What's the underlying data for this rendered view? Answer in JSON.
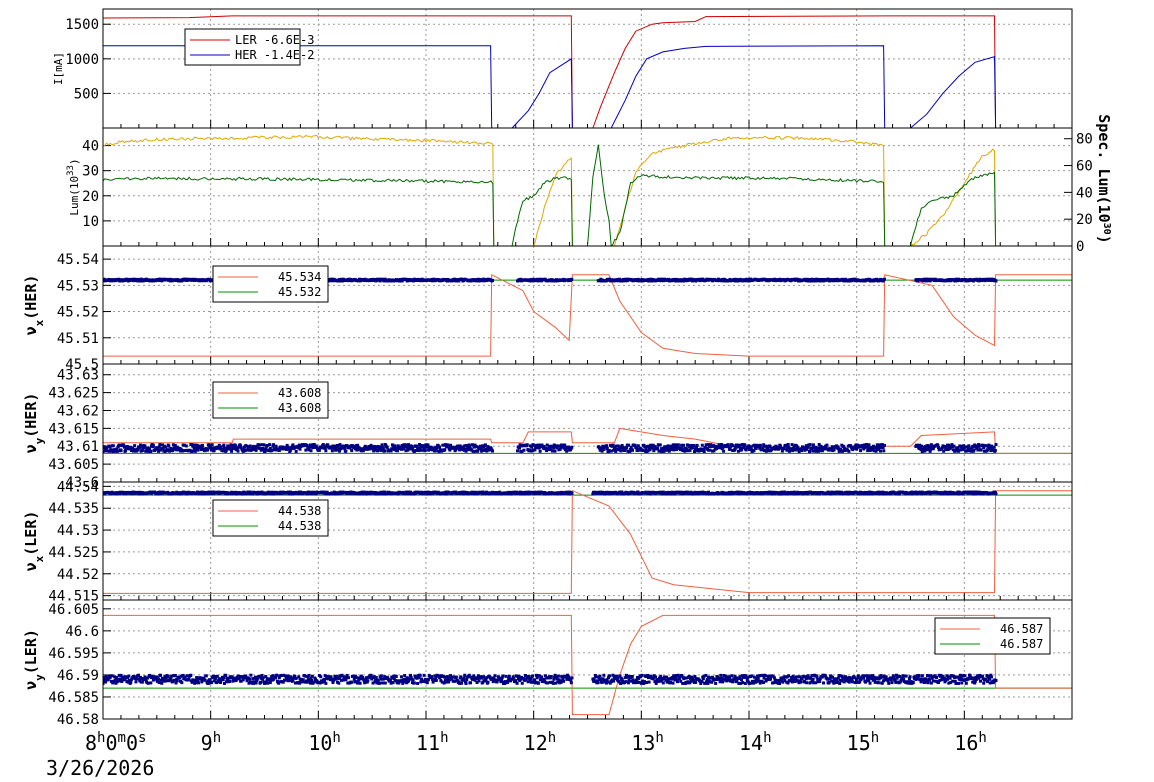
{
  "date_label": "3/26/2026",
  "colors": {
    "ler": "#d00000",
    "her": "#0000c0",
    "lum": "#006600",
    "spec": "#e0a800",
    "tune_set": "#f06040",
    "tune_meas": "#000080",
    "tune_ref": "#009000"
  },
  "chart_data": [
    {
      "type": "line",
      "id": "current",
      "ylabel": "I[mA]",
      "ylim": [
        0,
        1720
      ],
      "yticks": [
        "500",
        "1000",
        "1500"
      ],
      "legend": {
        "placement": "top-left",
        "entries": [
          {
            "label": "LER  -6.6E-3",
            "color": "ler"
          },
          {
            "label": "HER  -1.4E-2",
            "color": "her"
          }
        ]
      },
      "series": [
        {
          "name": "LER",
          "color": "ler",
          "points": [
            [
              8,
              1590
            ],
            [
              8.8,
              1595
            ],
            [
              9.2,
              1620
            ],
            [
              12.35,
              1620
            ],
            [
              12.36,
              0
            ],
            [
              12.55,
              0
            ],
            [
              12.62,
              300
            ],
            [
              12.75,
              800
            ],
            [
              12.85,
              1150
            ],
            [
              12.95,
              1400
            ],
            [
              13.1,
              1500
            ],
            [
              13.2,
              1520
            ],
            [
              13.5,
              1540
            ],
            [
              13.6,
              1610
            ],
            [
              15.3,
              1620
            ],
            [
              16.28,
              1620
            ],
            [
              16.29,
              0
            ],
            [
              17.0,
              0
            ]
          ]
        },
        {
          "name": "HER",
          "color": "her",
          "points": [
            [
              8,
              1190
            ],
            [
              11.6,
              1190
            ],
            [
              11.61,
              0
            ],
            [
              11.8,
              0
            ],
            [
              11.95,
              250
            ],
            [
              12.05,
              500
            ],
            [
              12.15,
              800
            ],
            [
              12.3,
              950
            ],
            [
              12.35,
              1000
            ],
            [
              12.36,
              0
            ],
            [
              12.72,
              0
            ],
            [
              12.85,
              400
            ],
            [
              12.95,
              750
            ],
            [
              13.05,
              1000
            ],
            [
              13.2,
              1100
            ],
            [
              13.4,
              1150
            ],
            [
              13.6,
              1180
            ],
            [
              15.25,
              1190
            ],
            [
              15.26,
              0
            ],
            [
              15.5,
              0
            ],
            [
              15.65,
              200
            ],
            [
              15.8,
              500
            ],
            [
              15.95,
              750
            ],
            [
              16.1,
              950
            ],
            [
              16.28,
              1030
            ],
            [
              16.29,
              0
            ],
            [
              17.0,
              0
            ]
          ]
        }
      ]
    },
    {
      "type": "line",
      "id": "luminosity",
      "ylabel": "Lum(10^33)",
      "ylim": [
        0,
        47
      ],
      "yticks": [
        "10",
        "20",
        "30",
        "40"
      ],
      "right_ylabel": "Spec. Lum(10^30)",
      "right_ylim": [
        0,
        88
      ],
      "right_yticks": [
        "0",
        "20",
        "40",
        "60",
        "80"
      ],
      "series": [
        {
          "name": "Lum",
          "color": "spec",
          "points": [
            [
              8,
              40.5
            ],
            [
              8.2,
              41.5
            ],
            [
              8.5,
              42.5
            ],
            [
              9.0,
              42.8
            ],
            [
              9.5,
              43.2
            ],
            [
              10.0,
              43.5
            ],
            [
              10.5,
              42.5
            ],
            [
              11.0,
              42.0
            ],
            [
              11.5,
              41.0
            ],
            [
              11.62,
              40.5
            ],
            [
              11.63,
              0
            ],
            [
              12.0,
              0
            ],
            [
              12.1,
              15
            ],
            [
              12.2,
              28
            ],
            [
              12.3,
              33
            ],
            [
              12.35,
              35
            ],
            [
              12.36,
              0
            ],
            [
              12.75,
              0
            ],
            [
              12.85,
              15
            ],
            [
              12.95,
              30
            ],
            [
              13.1,
              37
            ],
            [
              13.4,
              40
            ],
            [
              13.8,
              43
            ],
            [
              14.0,
              43.2
            ],
            [
              14.5,
              43
            ],
            [
              15.0,
              41.5
            ],
            [
              15.25,
              40
            ],
            [
              15.26,
              0
            ],
            [
              15.5,
              0
            ],
            [
              15.65,
              5
            ],
            [
              15.8,
              12
            ],
            [
              16.0,
              25
            ],
            [
              16.15,
              35
            ],
            [
              16.28,
              38.5
            ],
            [
              16.29,
              0
            ]
          ]
        },
        {
          "name": "Spec",
          "color": "lum",
          "points": [
            [
              8,
              26.5
            ],
            [
              8.3,
              27
            ],
            [
              9.0,
              26.8
            ],
            [
              10.0,
              26.5
            ],
            [
              11.0,
              25.8
            ],
            [
              11.62,
              25.5
            ],
            [
              11.63,
              0
            ],
            [
              11.8,
              0
            ],
            [
              11.85,
              10
            ],
            [
              11.9,
              18
            ],
            [
              12.0,
              20
            ],
            [
              12.1,
              25
            ],
            [
              12.2,
              27
            ],
            [
              12.35,
              27
            ],
            [
              12.36,
              0
            ],
            [
              12.5,
              0
            ],
            [
              12.55,
              28
            ],
            [
              12.6,
              40
            ],
            [
              12.65,
              22
            ],
            [
              12.7,
              10
            ],
            [
              12.72,
              0
            ],
            [
              12.8,
              5
            ],
            [
              12.85,
              15
            ],
            [
              12.9,
              25
            ],
            [
              13.0,
              28
            ],
            [
              13.5,
              27
            ],
            [
              14.0,
              27
            ],
            [
              14.5,
              26.8
            ],
            [
              15.0,
              26
            ],
            [
              15.25,
              25.5
            ],
            [
              15.26,
              0
            ],
            [
              15.5,
              0
            ],
            [
              15.55,
              8
            ],
            [
              15.6,
              15
            ],
            [
              15.7,
              18
            ],
            [
              15.9,
              20
            ],
            [
              16.05,
              26
            ],
            [
              16.15,
              28
            ],
            [
              16.28,
              29
            ],
            [
              16.29,
              0
            ]
          ]
        }
      ]
    },
    {
      "type": "scatter",
      "id": "nux_her",
      "ylabel": "νx(HER)",
      "ylim": [
        45.5,
        45.545
      ],
      "yticks": [
        "45.5",
        "45.51",
        "45.52",
        "45.53",
        "45.54"
      ],
      "legend": {
        "placement": "top-left",
        "entries": [
          {
            "label": "45.534",
            "color": "tune_set"
          },
          {
            "label": "45.532",
            "color": "tune_ref"
          }
        ]
      },
      "reference": 45.532,
      "set_line": [
        [
          8,
          45.503
        ],
        [
          11.6,
          45.503
        ],
        [
          11.61,
          45.534
        ],
        [
          11.9,
          45.528
        ],
        [
          12.0,
          45.52
        ],
        [
          12.2,
          45.514
        ],
        [
          12.33,
          45.509
        ],
        [
          12.36,
          45.534
        ],
        [
          12.7,
          45.534
        ],
        [
          12.8,
          45.524
        ],
        [
          13.0,
          45.512
        ],
        [
          13.2,
          45.506
        ],
        [
          13.5,
          45.504
        ],
        [
          14.0,
          45.503
        ],
        [
          15.25,
          45.503
        ],
        [
          15.26,
          45.534
        ],
        [
          15.7,
          45.53
        ],
        [
          15.9,
          45.518
        ],
        [
          16.1,
          45.511
        ],
        [
          16.28,
          45.507
        ],
        [
          16.29,
          45.534
        ],
        [
          17,
          45.534
        ]
      ],
      "measured": [
        [
          8,
          11.62,
          45.532
        ],
        [
          11.85,
          12.36,
          45.532
        ],
        [
          12.6,
          15.26,
          45.532
        ],
        [
          15.55,
          16.3,
          45.532
        ]
      ]
    },
    {
      "type": "scatter",
      "id": "nuy_her",
      "ylabel": "νy(HER)",
      "ylim": [
        43.6,
        43.633
      ],
      "yticks": [
        "43.6",
        "43.605",
        "43.61",
        "43.615",
        "43.62",
        "43.625",
        "43.63"
      ],
      "legend": {
        "placement": "top-left",
        "entries": [
          {
            "label": "43.608",
            "color": "tune_set"
          },
          {
            "label": "43.608",
            "color": "tune_ref"
          }
        ]
      },
      "reference": 43.608,
      "set_line": [
        [
          8,
          43.611
        ],
        [
          9.2,
          43.611
        ],
        [
          9.21,
          43.612
        ],
        [
          11.6,
          43.612
        ],
        [
          11.61,
          43.611
        ],
        [
          11.9,
          43.611
        ],
        [
          11.95,
          43.614
        ],
        [
          12.35,
          43.614
        ],
        [
          12.36,
          43.611
        ],
        [
          12.75,
          43.611
        ],
        [
          12.8,
          43.615
        ],
        [
          13.2,
          43.613
        ],
        [
          13.5,
          43.612
        ],
        [
          14.0,
          43.609
        ],
        [
          15.25,
          43.61
        ],
        [
          15.5,
          43.61
        ],
        [
          15.6,
          43.613
        ],
        [
          16.28,
          43.614
        ],
        [
          16.29,
          43.608
        ],
        [
          17,
          43.608
        ]
      ],
      "measured": [
        [
          8,
          11.62,
          43.6095
        ],
        [
          11.85,
          12.36,
          43.6095
        ],
        [
          12.6,
          15.26,
          43.6095
        ],
        [
          15.55,
          16.3,
          43.6095
        ]
      ]
    },
    {
      "type": "scatter",
      "id": "nux_ler",
      "ylabel": "νx(LER)",
      "ylim": [
        44.514,
        44.541
      ],
      "yticks": [
        "44.515",
        "44.52",
        "44.525",
        "44.53",
        "44.535",
        "44.54"
      ],
      "legend": {
        "placement": "top-left",
        "entries": [
          {
            "label": "44.538",
            "color": "tune_set"
          },
          {
            "label": "44.538",
            "color": "tune_ref"
          }
        ]
      },
      "reference": 44.538,
      "set_line": [
        [
          8,
          44.5155
        ],
        [
          12.35,
          44.5155
        ],
        [
          12.36,
          44.539
        ],
        [
          12.7,
          44.5355
        ],
        [
          12.9,
          44.529
        ],
        [
          13.0,
          44.524
        ],
        [
          13.1,
          44.519
        ],
        [
          13.3,
          44.5175
        ],
        [
          14.0,
          44.5157
        ],
        [
          16.28,
          44.5157
        ],
        [
          16.29,
          44.539
        ],
        [
          17,
          44.539
        ]
      ],
      "measured": [
        [
          8,
          12.36,
          44.5385
        ],
        [
          12.55,
          16.3,
          44.5385
        ]
      ]
    },
    {
      "type": "scatter",
      "id": "nuy_ler",
      "ylabel": "νy(LER)",
      "ylim": [
        46.58,
        46.607
      ],
      "yticks": [
        "46.58",
        "46.585",
        "46.59",
        "46.595",
        "46.6",
        "46.605"
      ],
      "legend": {
        "placement": "top-right",
        "entries": [
          {
            "label": "46.587",
            "color": "tune_set"
          },
          {
            "label": "46.587",
            "color": "tune_ref"
          }
        ]
      },
      "reference": 46.587,
      "set_line": [
        [
          8,
          46.6035
        ],
        [
          12.35,
          46.6035
        ],
        [
          12.36,
          46.581
        ],
        [
          12.7,
          46.581
        ],
        [
          12.8,
          46.59
        ],
        [
          12.9,
          46.597
        ],
        [
          13.0,
          46.601
        ],
        [
          13.2,
          46.6035
        ],
        [
          16.28,
          46.6035
        ],
        [
          16.29,
          46.587
        ],
        [
          17,
          46.587
        ]
      ],
      "measured": [
        [
          8,
          12.36,
          46.589
        ],
        [
          12.55,
          16.3,
          46.589
        ]
      ]
    }
  ],
  "x_axis": {
    "range": [
      8,
      17
    ],
    "ticks": [
      {
        "value": 8,
        "label": "8h0m0s"
      },
      {
        "value": 9,
        "label": "9h"
      },
      {
        "value": 10,
        "label": "10h"
      },
      {
        "value": 11,
        "label": "11h"
      },
      {
        "value": 12,
        "label": "12h"
      },
      {
        "value": 13,
        "label": "13h"
      },
      {
        "value": 14,
        "label": "14h"
      },
      {
        "value": 15,
        "label": "15h"
      },
      {
        "value": 16,
        "label": "16h"
      }
    ]
  }
}
